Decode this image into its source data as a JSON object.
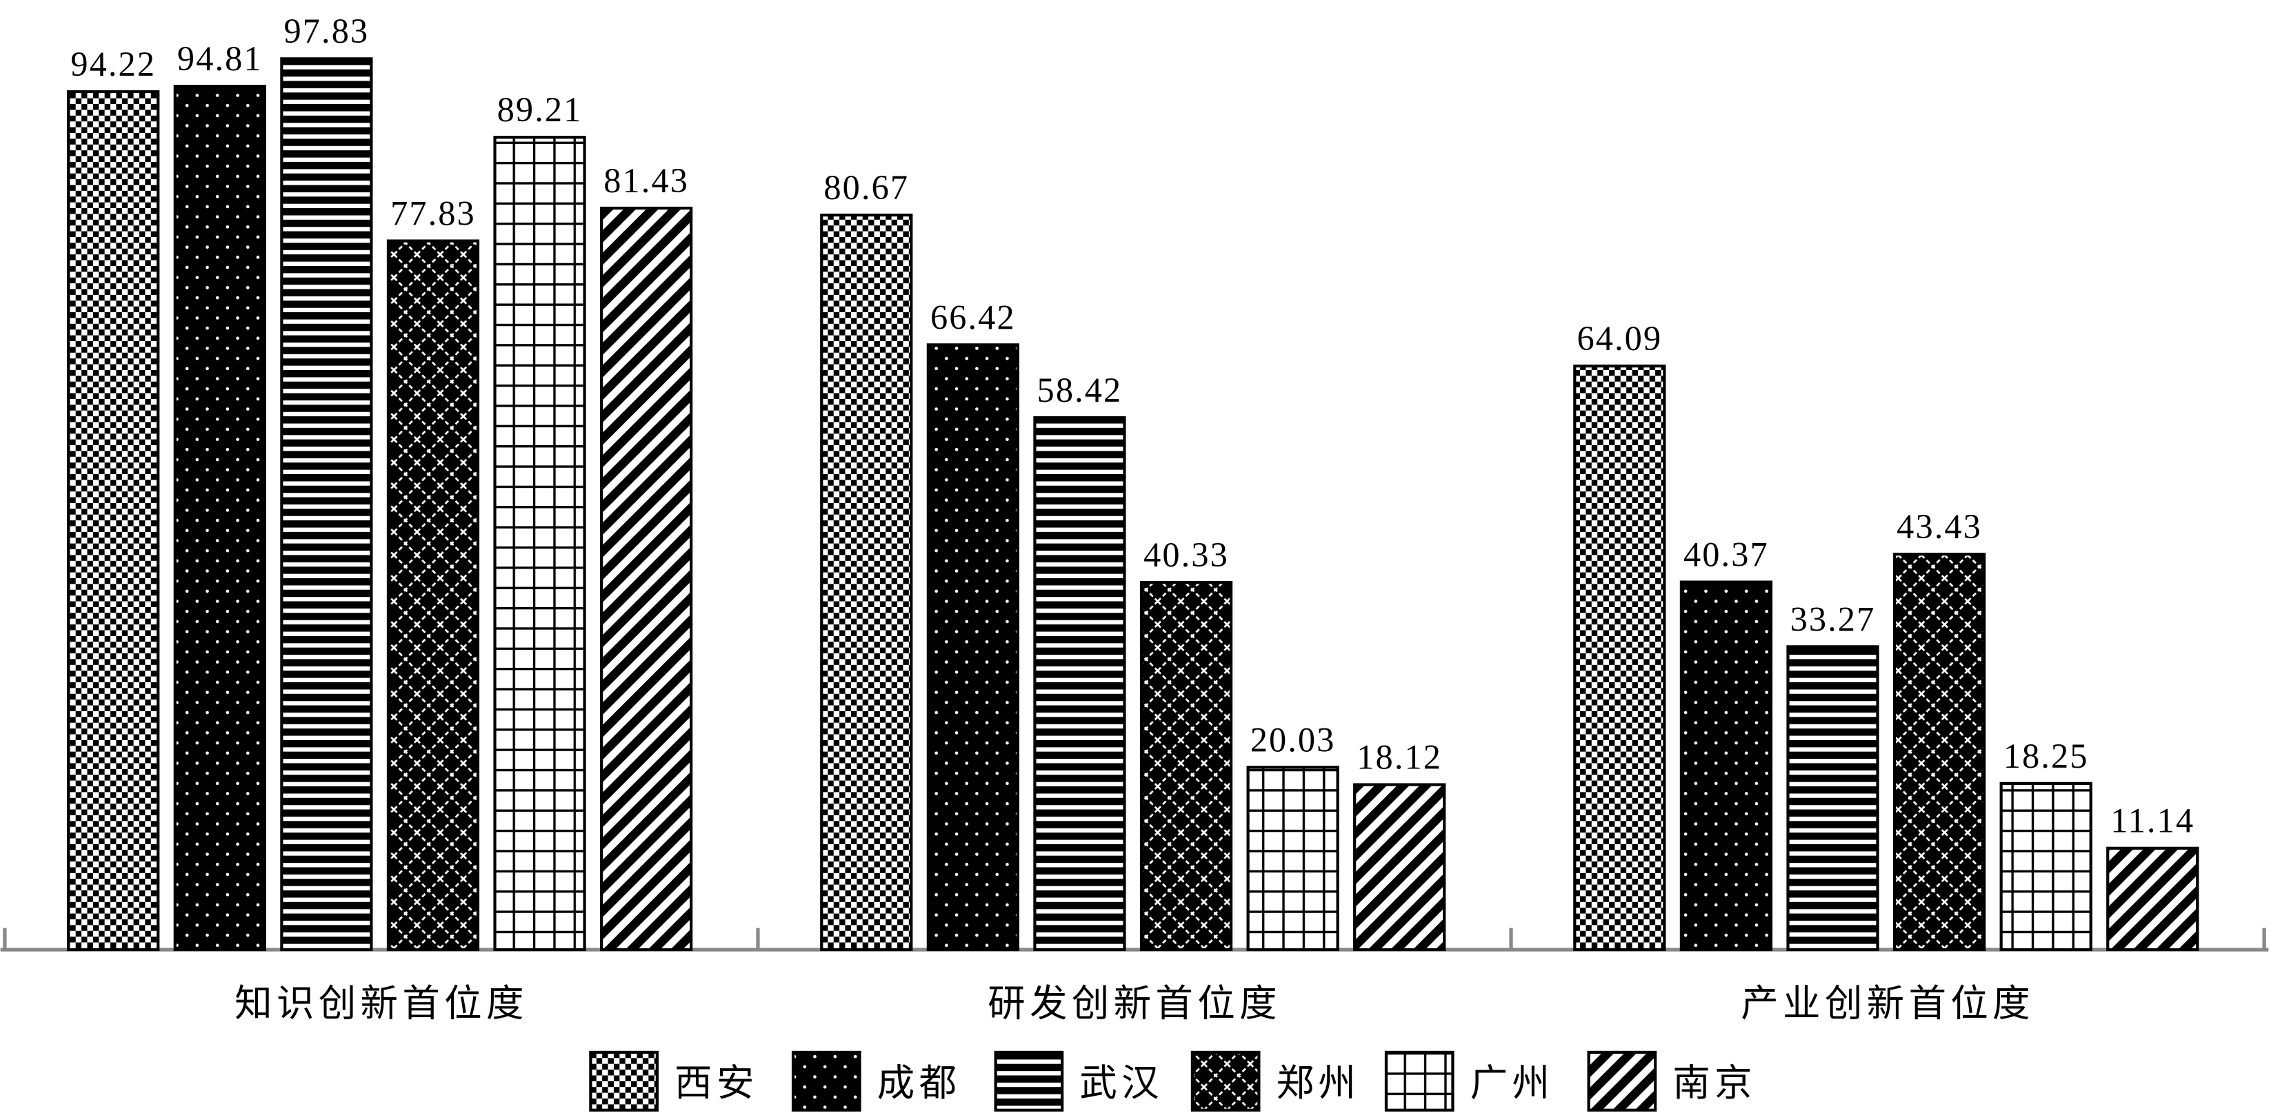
{
  "chart_data": {
    "type": "bar",
    "categories": [
      "知识创新首位度",
      "研发创新首位度",
      "产业创新首位度"
    ],
    "series": [
      {
        "name": "西安",
        "values": [
          94.22,
          80.67,
          64.09
        ]
      },
      {
        "name": "成都",
        "values": [
          94.81,
          66.42,
          40.37
        ]
      },
      {
        "name": "武汉",
        "values": [
          97.83,
          58.42,
          33.27
        ]
      },
      {
        "name": "郑州",
        "values": [
          77.83,
          40.33,
          43.43
        ]
      },
      {
        "name": "广州",
        "values": [
          89.21,
          20.03,
          18.25
        ]
      },
      {
        "name": "南京",
        "values": [
          81.43,
          18.12,
          11.14
        ]
      }
    ],
    "legend": "bottom"
  }
}
